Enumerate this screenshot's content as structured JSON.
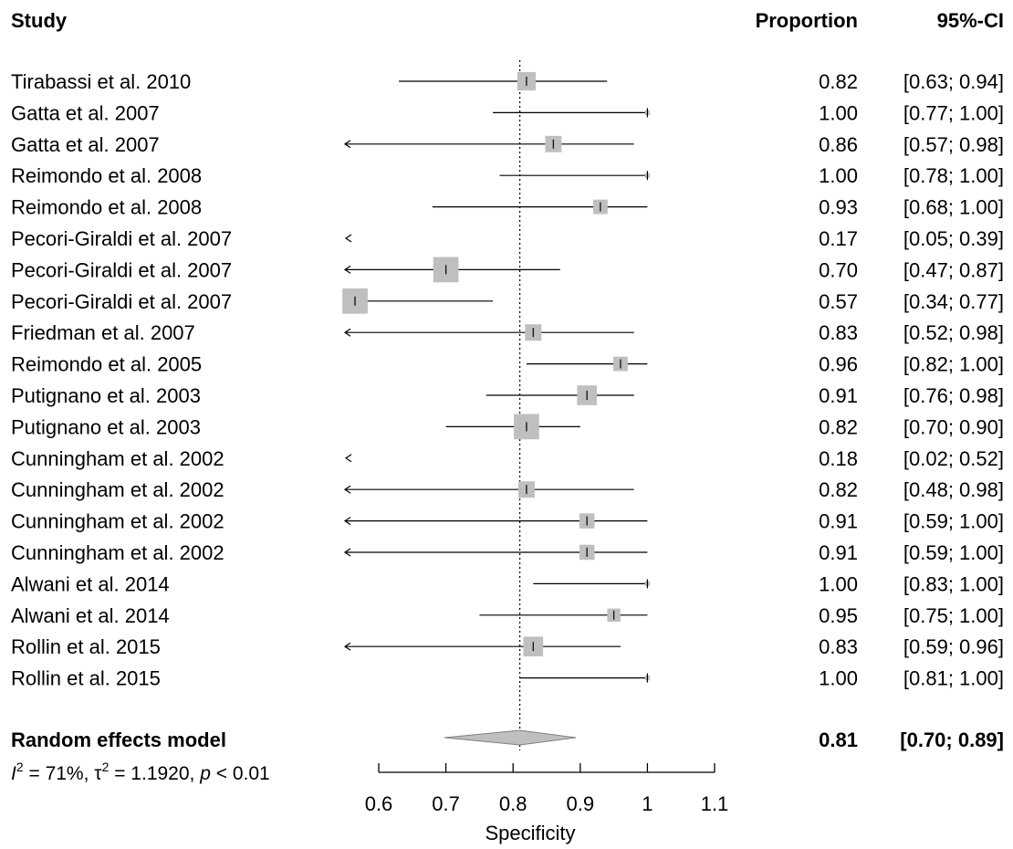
{
  "chart_data": {
    "type": "forest",
    "headers": {
      "study": "Study",
      "proportion": "Proportion",
      "ci": "95%-CI"
    },
    "xlabel": "Specificity",
    "xlim": [
      0.6,
      1.1
    ],
    "xticks": [
      "0.6",
      "0.7",
      "0.8",
      "0.9",
      "1",
      "1.1"
    ],
    "reference_line": 0.81,
    "studies": [
      {
        "label": "Tirabassi et al. 2010",
        "est": 0.82,
        "lo": 0.63,
        "hi": 0.94,
        "prop": "0.82",
        "ci": "[0.63; 0.94]",
        "weight": 5.6
      },
      {
        "label": "Gatta et al. 2007",
        "est": 1.0,
        "lo": 0.77,
        "hi": 1.0,
        "prop": "1.00",
        "ci": "[0.77; 1.00]",
        "weight": 1.5
      },
      {
        "label": "Gatta et al. 2007",
        "est": 0.86,
        "lo": 0.57,
        "hi": 0.98,
        "prop": "0.86",
        "ci": "[0.57; 0.98]",
        "weight": 5.0
      },
      {
        "label": "Reimondo et al. 2008",
        "est": 1.0,
        "lo": 0.78,
        "hi": 1.0,
        "prop": "1.00",
        "ci": "[0.78; 1.00]",
        "weight": 1.5
      },
      {
        "label": "Reimondo et al. 2008",
        "est": 0.93,
        "lo": 0.68,
        "hi": 1.0,
        "prop": "0.93",
        "ci": "[0.68; 1.00]",
        "weight": 4.4
      },
      {
        "label": "Pecori-Giraldi et al. 2007",
        "est": 0.17,
        "lo": 0.05,
        "hi": 0.39,
        "prop": "0.17",
        "ci": "[0.05; 0.39]",
        "weight": 6.0
      },
      {
        "label": "Pecori-Giraldi et al. 2007",
        "est": 0.7,
        "lo": 0.47,
        "hi": 0.87,
        "prop": "0.70",
        "ci": "[0.47; 0.87]",
        "weight": 7.7
      },
      {
        "label": "Pecori-Giraldi et al. 2007",
        "est": 0.57,
        "lo": 0.34,
        "hi": 0.77,
        "prop": "0.57",
        "ci": "[0.34; 0.77]",
        "weight": 7.7
      },
      {
        "label": "Friedman et al. 2007",
        "est": 0.83,
        "lo": 0.52,
        "hi": 0.98,
        "prop": "0.83",
        "ci": "[0.52; 0.98]",
        "weight": 5.0
      },
      {
        "label": "Reimondo et al. 2005",
        "est": 0.96,
        "lo": 0.82,
        "hi": 1.0,
        "prop": "0.96",
        "ci": "[0.82; 1.00]",
        "weight": 4.4
      },
      {
        "label": "Putignano et al. 2003",
        "est": 0.91,
        "lo": 0.76,
        "hi": 0.98,
        "prop": "0.91",
        "ci": "[0.76; 0.98]",
        "weight": 6.0
      },
      {
        "label": "Putignano et al. 2003",
        "est": 0.82,
        "lo": 0.7,
        "hi": 0.9,
        "prop": "0.82",
        "ci": "[0.70; 0.90]",
        "weight": 7.7
      },
      {
        "label": "Cunningham et al. 2002",
        "est": 0.18,
        "lo": 0.02,
        "hi": 0.52,
        "prop": "0.18",
        "ci": "[0.02; 0.52]",
        "weight": 4.4
      },
      {
        "label": "Cunningham et al. 2002",
        "est": 0.82,
        "lo": 0.48,
        "hi": 0.98,
        "prop": "0.82",
        "ci": "[0.48; 0.98]",
        "weight": 5.0
      },
      {
        "label": "Cunningham et al. 2002",
        "est": 0.91,
        "lo": 0.59,
        "hi": 1.0,
        "prop": "0.91",
        "ci": "[0.59; 1.00]",
        "weight": 4.6
      },
      {
        "label": "Cunningham et al. 2002",
        "est": 0.91,
        "lo": 0.59,
        "hi": 1.0,
        "prop": "0.91",
        "ci": "[0.59; 1.00]",
        "weight": 4.6
      },
      {
        "label": "Alwani et al. 2014",
        "est": 1.0,
        "lo": 0.83,
        "hi": 1.0,
        "prop": "1.00",
        "ci": "[0.83; 1.00]",
        "weight": 1.5
      },
      {
        "label": "Alwani et al. 2014",
        "est": 0.95,
        "lo": 0.75,
        "hi": 1.0,
        "prop": "0.95",
        "ci": "[0.75; 1.00]",
        "weight": 4.0
      },
      {
        "label": "Rollin et al. 2015",
        "est": 0.83,
        "lo": 0.59,
        "hi": 0.96,
        "prop": "0.83",
        "ci": "[0.59; 0.96]",
        "weight": 6.0
      },
      {
        "label": "Rollin et al. 2015",
        "est": 1.0,
        "lo": 0.81,
        "hi": 1.0,
        "prop": "1.00",
        "ci": "[0.81; 1.00]",
        "weight": 1.5
      }
    ],
    "summary": {
      "label": "Random effects model",
      "est": 0.81,
      "lo": 0.7,
      "hi": 0.89,
      "prop": "0.81",
      "ci": "[0.70; 0.89]"
    },
    "heterogeneity": {
      "I": "I",
      "two": "2",
      "i2_rest": " = 71%, ",
      "tau": "τ",
      "tau_rest": " = 1.1920, ",
      "p": "p",
      "p_rest": " < 0.01"
    }
  }
}
